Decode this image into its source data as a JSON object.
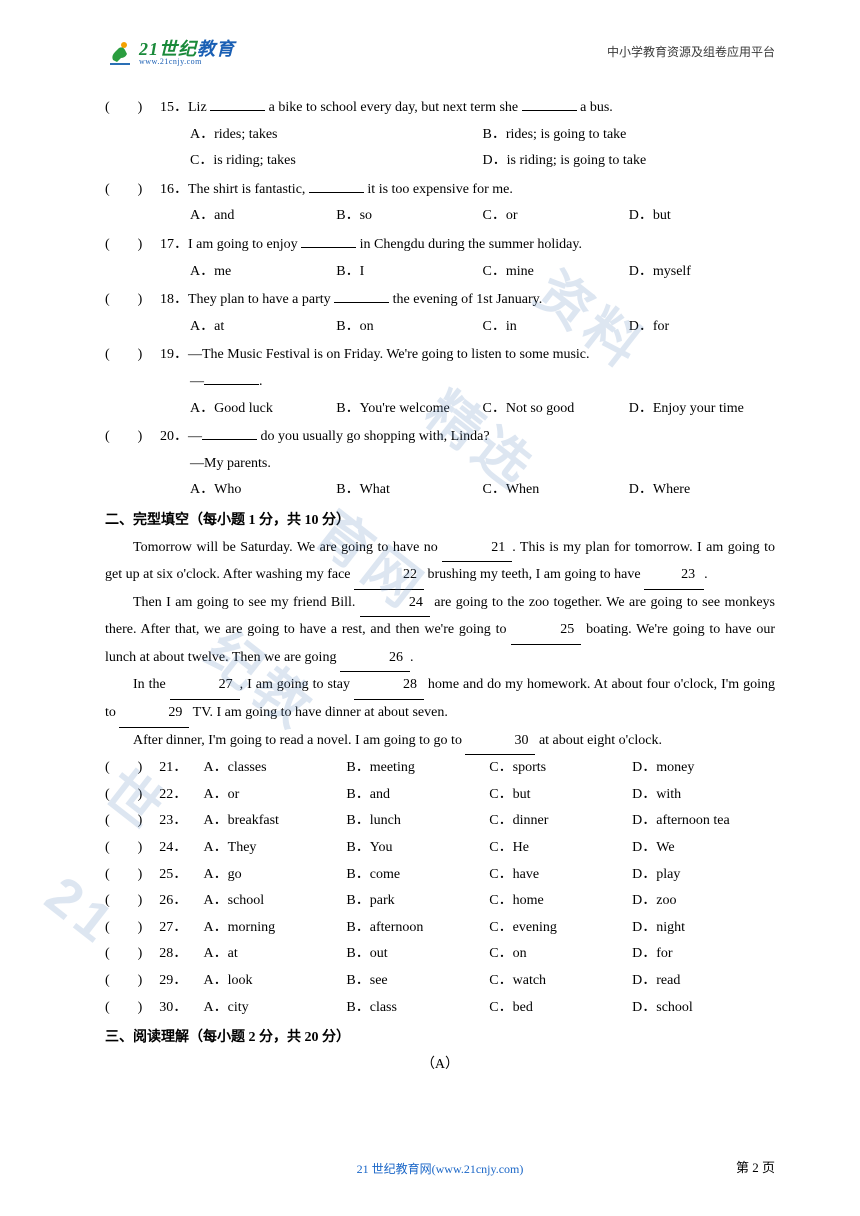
{
  "header": {
    "logo_cn_part1": "21",
    "logo_cn_part2": "世纪",
    "logo_cn_part3": "教育",
    "logo_url": "www.21cnjy.com",
    "right_text": "中小学教育资源及组卷应用平台"
  },
  "watermark": {
    "text": "世纪教育网精选资料",
    "char1": "资料",
    "char2": "精选",
    "char3": "育网",
    "char4": "纪教",
    "char5": "世",
    "char6": "21"
  },
  "questions": [
    {
      "num": "15",
      "text_parts": [
        "Liz ",
        " a bike to school every day, but next term she ",
        " a bus."
      ],
      "options": [
        "A．rides; takes",
        "B．rides; is going to take",
        "C．is riding; takes",
        "D．is riding; is going to take"
      ],
      "layout": "2x2"
    },
    {
      "num": "16",
      "text_parts": [
        "The shirt is fantastic, ",
        " it is too expensive for me."
      ],
      "options": [
        "A．and",
        "B．so",
        "C．or",
        "D．but"
      ],
      "layout": "1x4"
    },
    {
      "num": "17",
      "text_parts": [
        "I am going to enjoy ",
        " in Chengdu during the summer holiday."
      ],
      "options": [
        "A．me",
        "B．I",
        "C．mine",
        "D．myself"
      ],
      "layout": "1x4"
    },
    {
      "num": "18",
      "text_parts": [
        "They plan to have a party ",
        " the evening of 1st January."
      ],
      "options": [
        "A．at",
        "B．on",
        "C．in",
        "D．for"
      ],
      "layout": "1x4"
    },
    {
      "num": "19",
      "text_before": "—The Music Festival is on Friday. We're going to listen to some music.",
      "text_after": "—",
      "options": [
        "A．Good luck",
        "B．You're welcome",
        "C．Not so good",
        "D．Enjoy your time"
      ],
      "layout": "1x4"
    },
    {
      "num": "20",
      "text_parts": [
        "—",
        " do you usually go shopping with, Linda?"
      ],
      "text_line2": "—My parents.",
      "options": [
        "A．Who",
        "B．What",
        "C．When",
        "D．Where"
      ],
      "layout": "1x4"
    }
  ],
  "section2": {
    "title": "二、完型填空（每小题 1 分，共 10 分）",
    "passage": [
      {
        "pre": "Tomorrow will be Saturday. We are going to have no ",
        "blank": "21",
        "post": ". This is my plan for tomorrow. I am going to get up at six o'clock. After washing my face ",
        "blank2": "22",
        "post2": " brushing my teeth, I am going to have ",
        "blank3": "23",
        "post3": "."
      },
      {
        "pre": "Then I am going to see my friend Bill. ",
        "blank": "24",
        "post": " are going to the zoo together. We are going to see monkeys there. After that, we are going to have a rest, and then we're going to ",
        "blank2": "25",
        "post2": " boating. We're going to have our lunch at about twelve. Then we are going ",
        "blank3": "26",
        "post3": "."
      },
      {
        "pre": "In the ",
        "blank": "27",
        "post": ", I am going to stay ",
        "blank2": "28",
        "post2": " home and do my homework. At about four o'clock, I'm going to ",
        "blank3": "29",
        "post3": " TV. I am going to have dinner at about seven."
      },
      {
        "pre": "After dinner, I'm going to read a novel. I am going to go to ",
        "blank": "30",
        "post": " at about eight o'clock."
      }
    ],
    "cloze_options": [
      {
        "num": "21",
        "opts": [
          "A．classes",
          "B．meeting",
          "C．sports",
          "D．money"
        ]
      },
      {
        "num": "22",
        "opts": [
          "A．or",
          "B．and",
          "C．but",
          "D．with"
        ]
      },
      {
        "num": "23",
        "opts": [
          "A．breakfast",
          "B．lunch",
          "C．dinner",
          "D．afternoon tea"
        ]
      },
      {
        "num": "24",
        "opts": [
          "A．They",
          "B．You",
          "C．He",
          "D．We"
        ]
      },
      {
        "num": "25",
        "opts": [
          "A．go",
          "B．come",
          "C．have",
          "D．play"
        ]
      },
      {
        "num": "26",
        "opts": [
          "A．school",
          "B．park",
          "C．home",
          "D．zoo"
        ]
      },
      {
        "num": "27",
        "opts": [
          "A．morning",
          "B．afternoon",
          "C．evening",
          "D．night"
        ]
      },
      {
        "num": "28",
        "opts": [
          "A．at",
          "B．out",
          "C．on",
          "D．for"
        ]
      },
      {
        "num": "29",
        "opts": [
          "A．look",
          "B．see",
          "C．watch",
          "D．read"
        ]
      },
      {
        "num": "30",
        "opts": [
          "A．city",
          "B．class",
          "C．bed",
          "D．school"
        ]
      }
    ]
  },
  "section3": {
    "title": "三、阅读理解（每小题 2 分，共 20 分）",
    "subtitle": "（A）"
  },
  "footer": {
    "text": "21 世纪教育网(www.21cnjy.com)",
    "page": "第 2 页"
  },
  "colors": {
    "text": "#000000",
    "link": "#1a66c7",
    "logo_green": "#1a8a3a",
    "logo_blue": "#1a5fb4",
    "watermark": "rgba(100,140,190,0.22)"
  }
}
